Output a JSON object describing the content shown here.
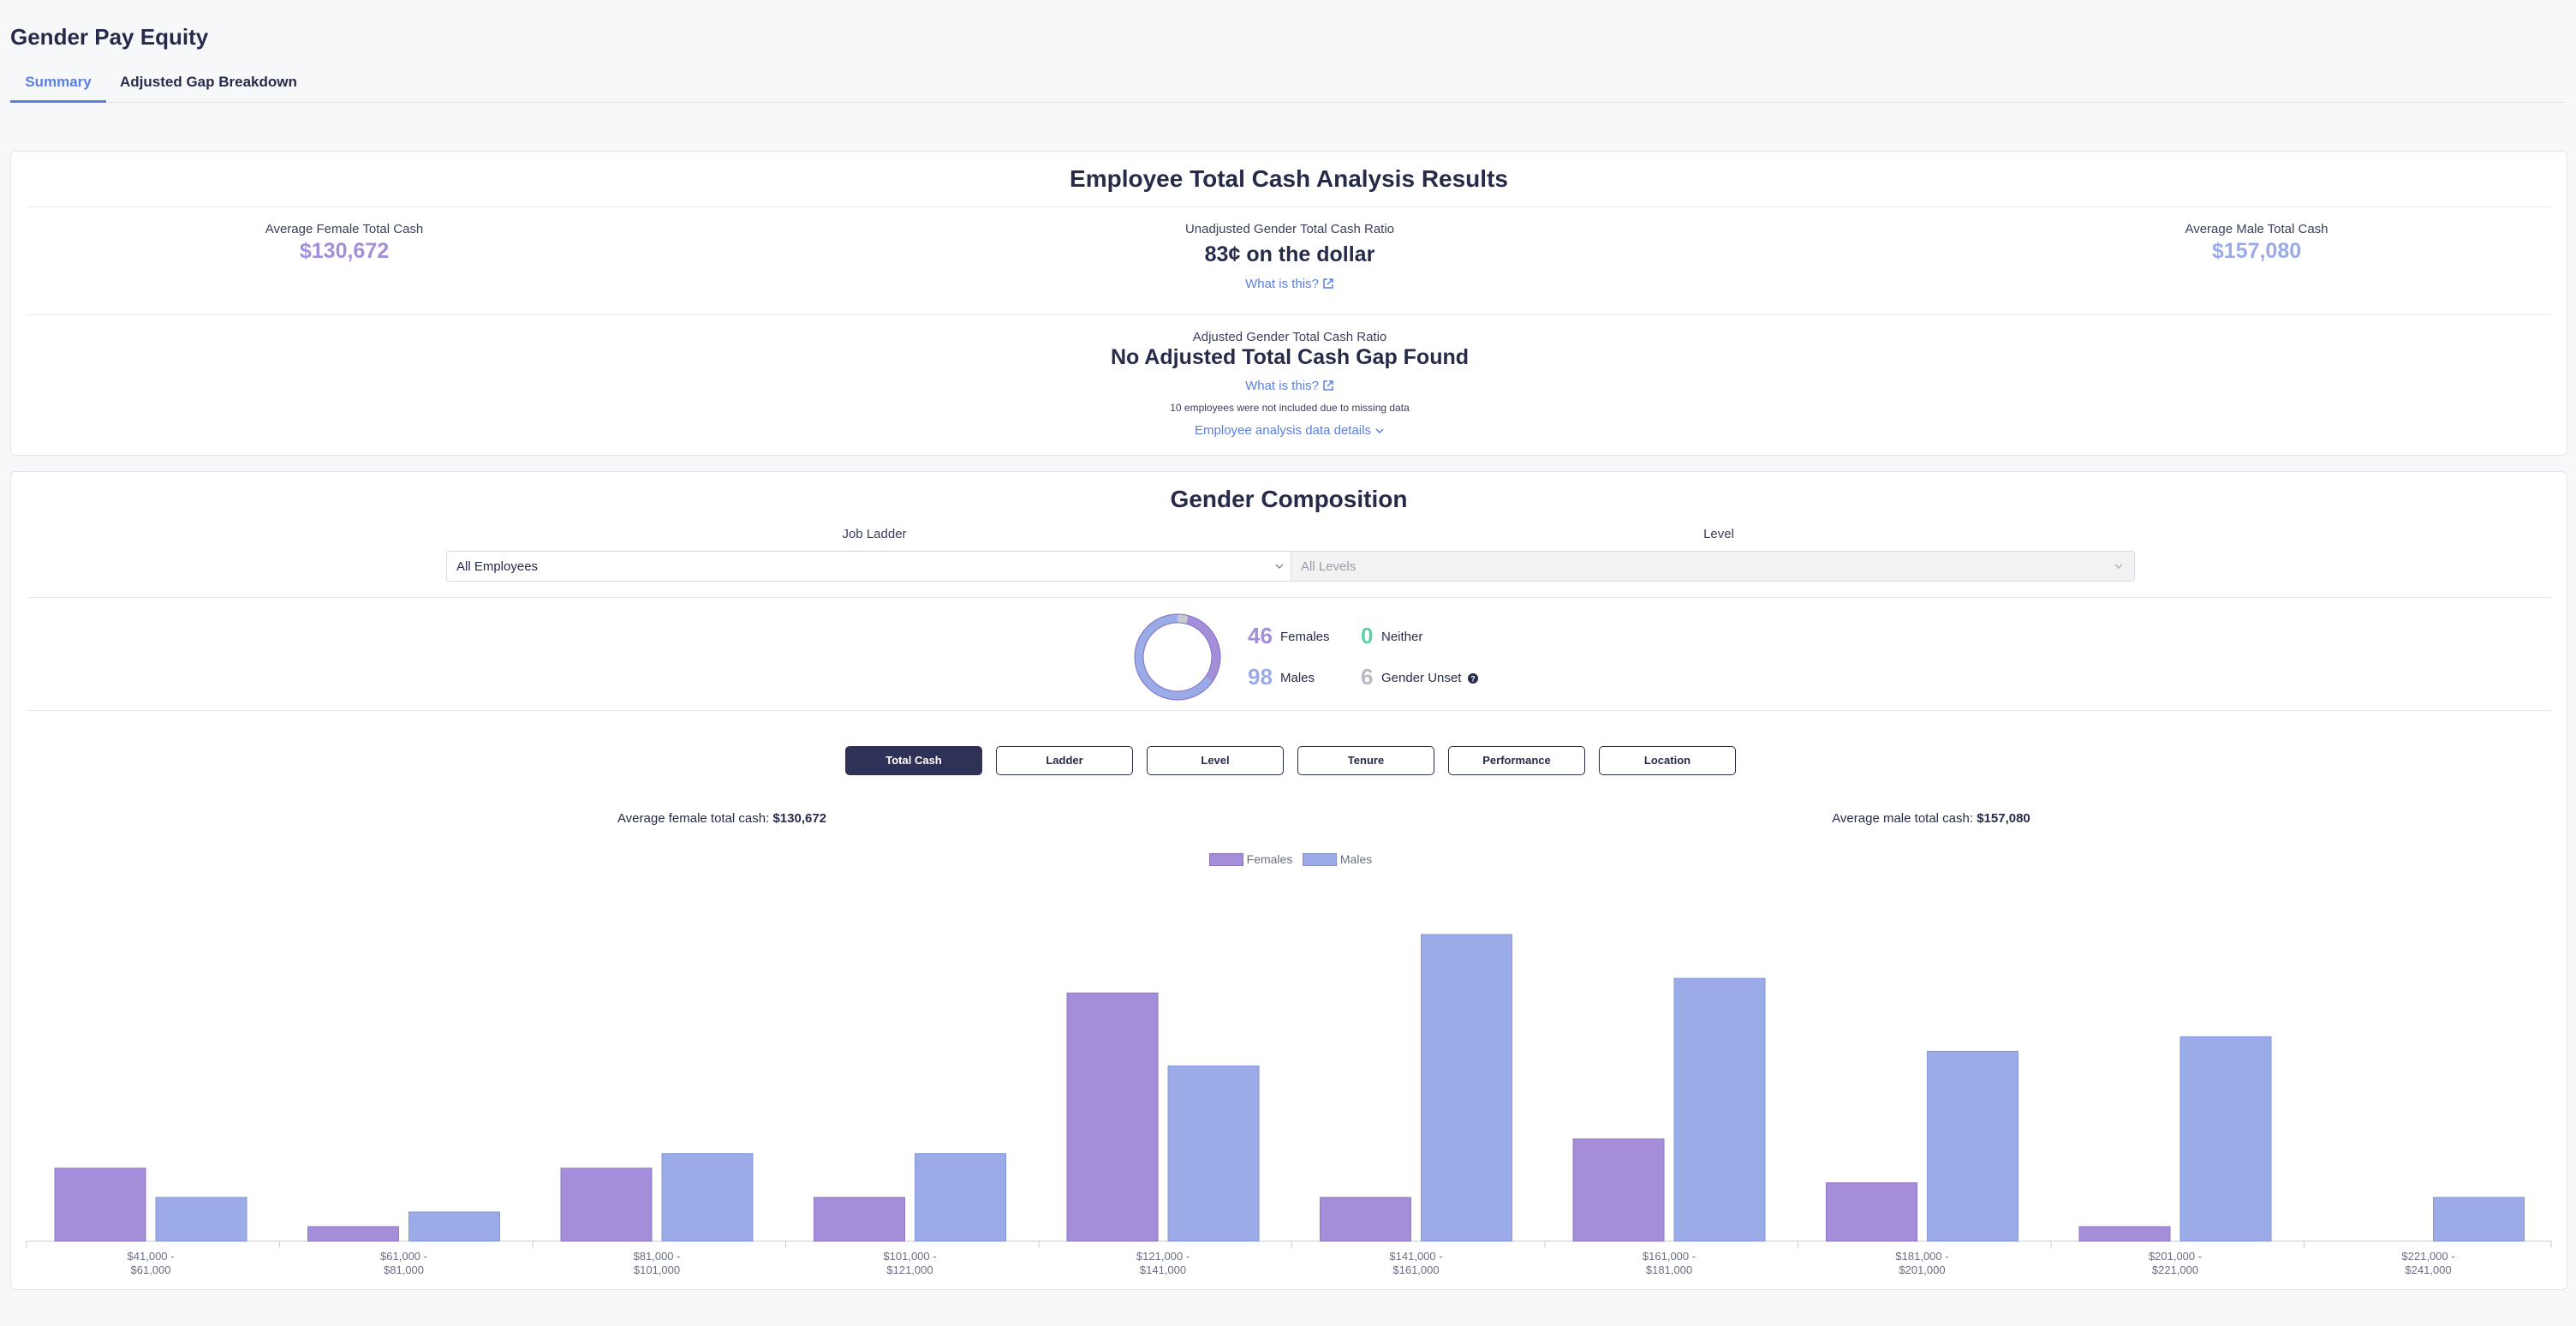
{
  "page": {
    "title": "Gender Pay Equity"
  },
  "tabs": [
    {
      "label": "Summary",
      "active": true
    },
    {
      "label": "Adjusted Gap Breakdown",
      "active": false
    }
  ],
  "analysis": {
    "title": "Employee Total Cash Analysis Results",
    "female_label": "Average Female Total Cash",
    "female_value": "$130,672",
    "ratio_label": "Unadjusted Gender Total Cash Ratio",
    "ratio_value": "83¢ on the dollar",
    "what_is_this": "What is this?",
    "male_label": "Average Male Total Cash",
    "male_value": "$157,080",
    "adjusted_label": "Adjusted Gender Total Cash Ratio",
    "adjusted_value": "No Adjusted Total Cash Gap Found",
    "what_is_this_2": "What is this?",
    "missing_note": "10 employees were not included due to missing data",
    "details_link": "Employee analysis data details"
  },
  "composition": {
    "title": "Gender Composition",
    "job_ladder_label": "Job Ladder",
    "job_ladder_value": "All Employees",
    "level_label": "Level",
    "level_value": "All Levels",
    "females_count": "46",
    "females_label": "Females",
    "neither_count": "0",
    "neither_label": "Neither",
    "males_count": "98",
    "males_label": "Males",
    "unset_count": "6",
    "unset_label": "Gender Unset"
  },
  "segments": [
    {
      "label": "Total Cash",
      "active": true
    },
    {
      "label": "Ladder",
      "active": false
    },
    {
      "label": "Level",
      "active": false
    },
    {
      "label": "Tenure",
      "active": false
    },
    {
      "label": "Performance",
      "active": false
    },
    {
      "label": "Location",
      "active": false
    }
  ],
  "averages": {
    "female_prefix": "Average female total cash:",
    "female_value": "$130,672",
    "male_prefix": "Average male total cash:",
    "male_value": "$157,080"
  },
  "colors": {
    "female": "#a58ed9",
    "male": "#9aabe8",
    "neither": "#5fd0a8",
    "unset": "#c8cad2",
    "accent": "#5b7fe0",
    "dark": "#272b4a"
  },
  "chart_data": {
    "type": "bar",
    "categories": [
      "$41,000 - $61,000",
      "$61,000 - $81,000",
      "$81,000 - $101,000",
      "$101,000 - $121,000",
      "$121,000 - $141,000",
      "$141,000 - $161,000",
      "$161,000 - $181,000",
      "$181,000 - $201,000",
      "$201,000 - $221,000",
      "$221,000 - $241,000"
    ],
    "series": [
      {
        "name": "Females",
        "values": [
          5,
          1,
          5,
          3,
          17,
          3,
          7,
          4,
          1,
          0
        ]
      },
      {
        "name": "Males",
        "values": [
          3,
          2,
          6,
          6,
          12,
          21,
          18,
          13,
          14,
          3
        ]
      }
    ],
    "ylim": [
      0,
      21
    ],
    "legend": "top-center",
    "grid": false
  }
}
